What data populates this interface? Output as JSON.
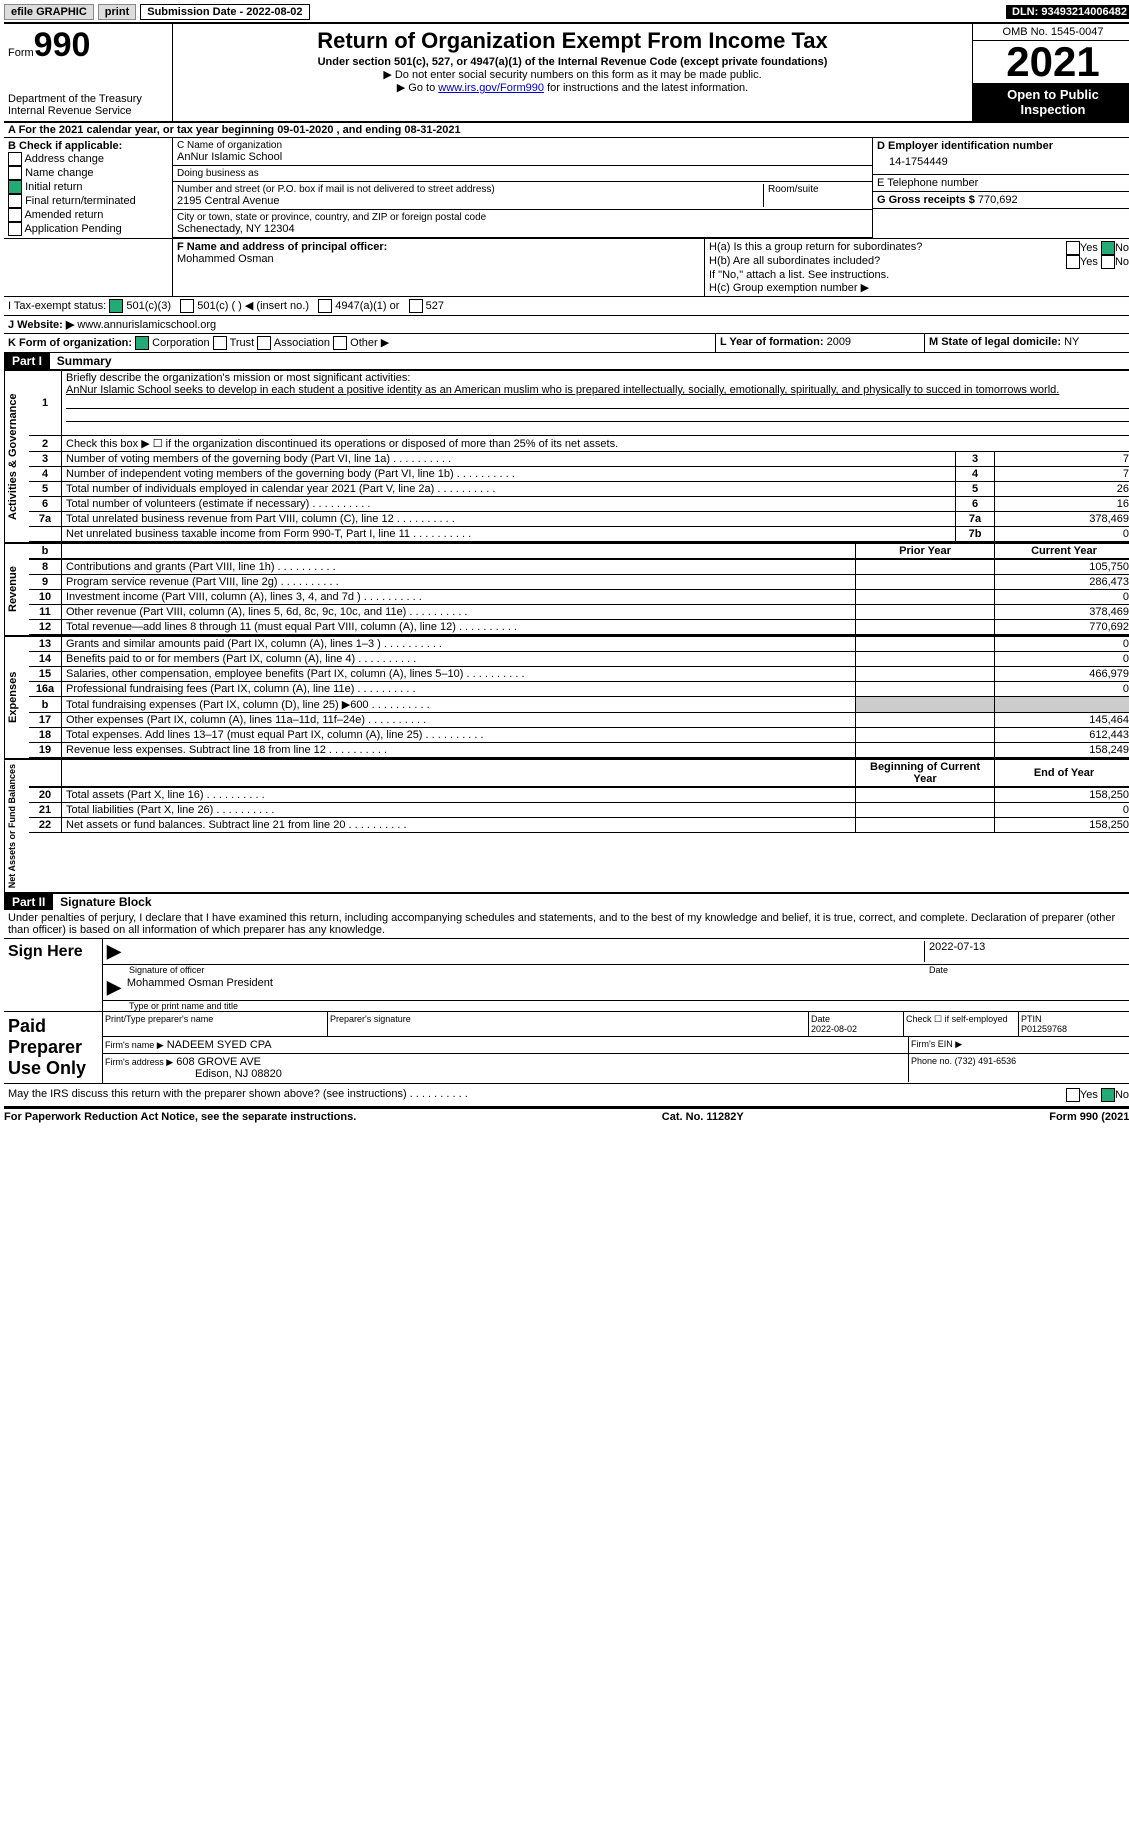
{
  "topbar": {
    "efile": "efile GRAPHIC",
    "print": "print",
    "submission": "Submission Date - 2022-08-02",
    "dln": "DLN: 93493214006482"
  },
  "header": {
    "form_prefix": "Form",
    "form_number": "990",
    "dept": "Department of the Treasury",
    "irs": "Internal Revenue Service",
    "title": "Return of Organization Exempt From Income Tax",
    "subtitle": "Under section 501(c), 527, or 4947(a)(1) of the Internal Revenue Code (except private foundations)",
    "note1": "▶ Do not enter social security numbers on this form as it may be made public.",
    "note2_prefix": "▶ Go to ",
    "note2_link": "www.irs.gov/Form990",
    "note2_suffix": " for instructions and the latest information.",
    "omb": "OMB No. 1545-0047",
    "year": "2021",
    "open_public": "Open to Public Inspection"
  },
  "line_a": "A For the 2021 calendar year, or tax year beginning 09-01-2020  , and ending 08-31-2021",
  "section_b": {
    "label": "B Check if applicable:",
    "items": [
      "Address change",
      "Name change",
      "Initial return",
      "Final return/terminated",
      "Amended return",
      "Application Pending"
    ],
    "checked_index": 2
  },
  "section_c": {
    "name_label": "C Name of organization",
    "org_name": "AnNur Islamic School",
    "dba_label": "Doing business as",
    "dba": "",
    "addr_label": "Number and street (or P.O. box if mail is not delivered to street address)",
    "room_label": "Room/suite",
    "address": "2195 Central Avenue",
    "city_label": "City or town, state or province, country, and ZIP or foreign postal code",
    "city": "Schenectady, NY  12304"
  },
  "section_d": {
    "ein_label": "D Employer identification number",
    "ein": "14-1754449",
    "phone_label": "E Telephone number",
    "phone": "",
    "gross_label": "G Gross receipts $",
    "gross": "770,692"
  },
  "section_f": {
    "label": "F  Name and address of principal officer:",
    "name": "Mohammed Osman"
  },
  "section_h": {
    "ha_label": "H(a)  Is this a group return for subordinates?",
    "ha_yes": "Yes",
    "ha_no": "No",
    "hb_label": "H(b)  Are all subordinates included?",
    "hb_yes": "Yes",
    "hb_no": "No",
    "hb_note": "If \"No,\" attach a list. See instructions.",
    "hc_label": "H(c)  Group exemption number ▶"
  },
  "section_i": {
    "label": "I   Tax-exempt status:",
    "opt1": "501(c)(3)",
    "opt2": "501(c) (   ) ◀ (insert no.)",
    "opt3": "4947(a)(1) or",
    "opt4": "527"
  },
  "section_j": {
    "label": "J  Website: ▶ ",
    "value": "www.annurislamicschool.org"
  },
  "section_k": {
    "label": "K Form of organization:",
    "opts": [
      "Corporation",
      "Trust",
      "Association",
      "Other ▶"
    ]
  },
  "section_l": {
    "label": "L Year of formation:",
    "value": "2009"
  },
  "section_m": {
    "label": "M State of legal domicile:",
    "value": "NY"
  },
  "part1": {
    "hdr": "Part I",
    "title": "Summary",
    "line1_label": "Briefly describe the organization's mission or most significant activities:",
    "line1_text": "AnNur Islamic School seeks to develop in each student a positive identity as an American muslim who is prepared intellectually, socially, emotionally, spiritually, and physically to succed in tomorrows world.",
    "line2": "Check this box ▶ ☐  if the organization discontinued its operations or disposed of more than 25% of its net assets.",
    "vlabel1": "Activities & Governance",
    "vlabel2": "Revenue",
    "vlabel3": "Expenses",
    "vlabel4": "Net Assets or Fund Balances",
    "rows_gov": [
      {
        "n": "3",
        "label": "Number of voting members of the governing body (Part VI, line 1a)",
        "box": "3",
        "val": "7"
      },
      {
        "n": "4",
        "label": "Number of independent voting members of the governing body (Part VI, line 1b)",
        "box": "4",
        "val": "7"
      },
      {
        "n": "5",
        "label": "Total number of individuals employed in calendar year 2021 (Part V, line 2a)",
        "box": "5",
        "val": "26"
      },
      {
        "n": "6",
        "label": "Total number of volunteers (estimate if necessary)",
        "box": "6",
        "val": "16"
      },
      {
        "n": "7a",
        "label": "Total unrelated business revenue from Part VIII, column (C), line 12",
        "box": "7a",
        "val": "378,469"
      },
      {
        "n": "",
        "label": "Net unrelated business taxable income from Form 990-T, Part I, line 11",
        "box": "7b",
        "val": "0"
      }
    ],
    "prior_hdr": "Prior Year",
    "current_hdr": "Current Year",
    "rows_rev": [
      {
        "n": "8",
        "label": "Contributions and grants (Part VIII, line 1h)",
        "prior": "",
        "val": "105,750"
      },
      {
        "n": "9",
        "label": "Program service revenue (Part VIII, line 2g)",
        "prior": "",
        "val": "286,473"
      },
      {
        "n": "10",
        "label": "Investment income (Part VIII, column (A), lines 3, 4, and 7d )",
        "prior": "",
        "val": "0"
      },
      {
        "n": "11",
        "label": "Other revenue (Part VIII, column (A), lines 5, 6d, 8c, 9c, 10c, and 11e)",
        "prior": "",
        "val": "378,469"
      },
      {
        "n": "12",
        "label": "Total revenue—add lines 8 through 11 (must equal Part VIII, column (A), line 12)",
        "prior": "",
        "val": "770,692"
      }
    ],
    "rows_exp": [
      {
        "n": "13",
        "label": "Grants and similar amounts paid (Part IX, column (A), lines 1–3 )",
        "prior": "",
        "val": "0"
      },
      {
        "n": "14",
        "label": "Benefits paid to or for members (Part IX, column (A), line 4)",
        "prior": "",
        "val": "0"
      },
      {
        "n": "15",
        "label": "Salaries, other compensation, employee benefits (Part IX, column (A), lines 5–10)",
        "prior": "",
        "val": "466,979"
      },
      {
        "n": "16a",
        "label": "Professional fundraising fees (Part IX, column (A), line 11e)",
        "prior": "",
        "val": "0"
      },
      {
        "n": "b",
        "label": "Total fundraising expenses (Part IX, column (D), line 25) ▶600",
        "prior": "GRAY",
        "val": "GRAY"
      },
      {
        "n": "17",
        "label": "Other expenses (Part IX, column (A), lines 11a–11d, 11f–24e)",
        "prior": "",
        "val": "145,464"
      },
      {
        "n": "18",
        "label": "Total expenses. Add lines 13–17 (must equal Part IX, column (A), line 25)",
        "prior": "",
        "val": "612,443"
      },
      {
        "n": "19",
        "label": "Revenue less expenses. Subtract line 18 from line 12",
        "prior": "",
        "val": "158,249"
      }
    ],
    "begin_hdr": "Beginning of Current Year",
    "end_hdr": "End of Year",
    "rows_net": [
      {
        "n": "20",
        "label": "Total assets (Part X, line 16)",
        "prior": "",
        "val": "158,250"
      },
      {
        "n": "21",
        "label": "Total liabilities (Part X, line 26)",
        "prior": "",
        "val": "0"
      },
      {
        "n": "22",
        "label": "Net assets or fund balances. Subtract line 21 from line 20",
        "prior": "",
        "val": "158,250"
      }
    ]
  },
  "part2": {
    "hdr": "Part II",
    "title": "Signature Block",
    "penalty": "Under penalties of perjury, I declare that I have examined this return, including accompanying schedules and statements, and to the best of my knowledge and belief, it is true, correct, and complete. Declaration of preparer (other than officer) is based on all information of which preparer has any knowledge.",
    "sign_here": "Sign Here",
    "sig_date": "2022-07-13",
    "sig_officer": "Signature of officer",
    "sig_date_label": "Date",
    "sig_name": "Mohammed Osman  President",
    "sig_name_label": "Type or print name and title",
    "paid_prep": "Paid Preparer Use Only",
    "prep_name_label": "Print/Type preparer's name",
    "prep_sig_label": "Preparer's signature",
    "prep_date_label": "Date",
    "prep_date": "2022-08-02",
    "prep_check_label": "Check ☐ if self-employed",
    "ptin_label": "PTIN",
    "ptin": "P01259768",
    "firm_name_label": "Firm's name   ▶",
    "firm_name": "NADEEM SYED CPA",
    "firm_ein_label": "Firm's EIN ▶",
    "firm_addr_label": "Firm's address ▶",
    "firm_addr": "608 GROVE AVE",
    "firm_city": "Edison, NJ  08820",
    "firm_phone_label": "Phone no.",
    "firm_phone": "(732) 491-6536",
    "discuss": "May the IRS discuss this return with the preparer shown above? (see instructions)",
    "discuss_yes": "Yes",
    "discuss_no": "No"
  },
  "footer": {
    "left": "For Paperwork Reduction Act Notice, see the separate instructions.",
    "mid": "Cat. No. 11282Y",
    "right": "Form 990 (2021)"
  }
}
